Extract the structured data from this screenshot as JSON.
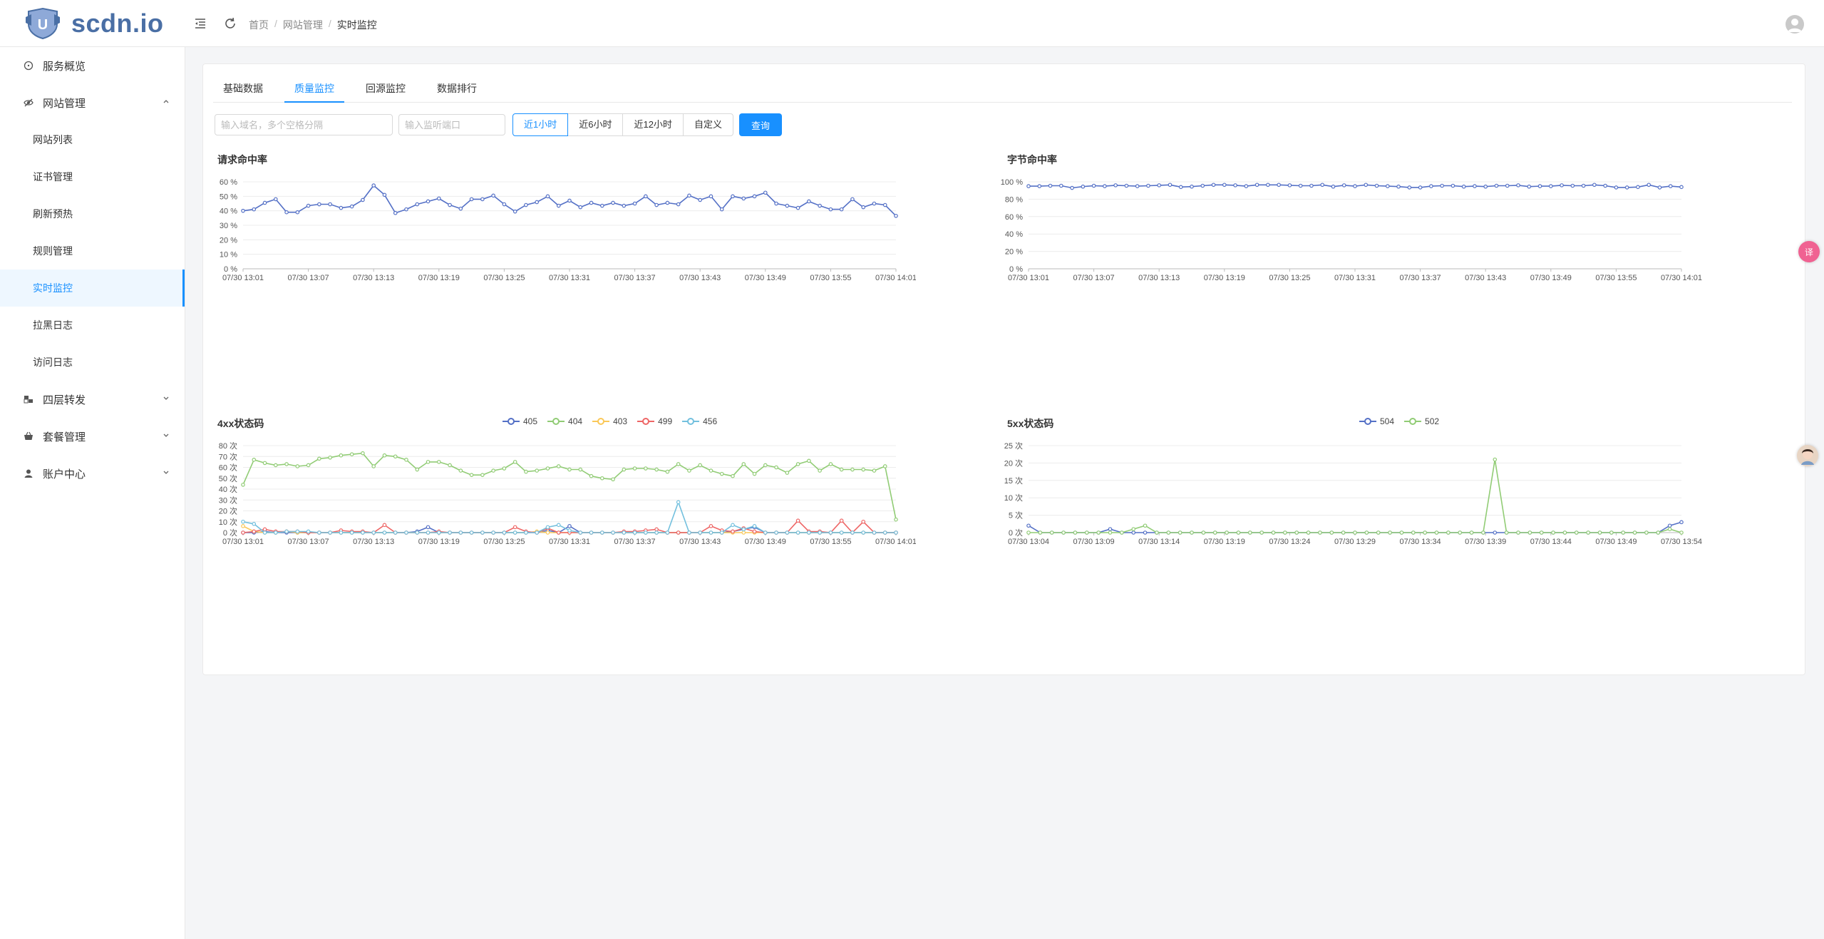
{
  "app": {
    "brand": "scdn.io"
  },
  "breadcrumb": [
    "首页",
    "网站管理",
    "实时监控"
  ],
  "sidebar": {
    "overview": "服务概览",
    "site_mgmt": "网站管理",
    "sub_items": [
      "网站列表",
      "证书管理",
      "刷新预热",
      "规则管理",
      "实时监控",
      "拉黑日志",
      "访问日志"
    ],
    "active_sub": 4,
    "l4": "四层转发",
    "plans": "套餐管理",
    "account": "账户中心"
  },
  "tabs": [
    "基础数据",
    "质量监控",
    "回源监控",
    "数据排行"
  ],
  "active_tab": 1,
  "filters": {
    "domain_placeholder": "输入域名，多个空格分隔",
    "port_placeholder": "输入监听端口",
    "ranges": [
      "近1小时",
      "近6小时",
      "近12小时",
      "自定义"
    ],
    "active_range": 0,
    "query_label": "查询"
  },
  "badge": "译",
  "chart_data": [
    {
      "id": "hit",
      "type": "line",
      "title": "请求命中率",
      "ylim": [
        0,
        60
      ],
      "yticks": [
        0,
        10,
        20,
        30,
        40,
        50,
        60
      ],
      "yunit": " %",
      "xticks": [
        "07/30 13:01",
        "07/30 13:07",
        "07/30 13:13",
        "07/30 13:19",
        "07/30 13:25",
        "07/30 13:31",
        "07/30 13:37",
        "07/30 13:43",
        "07/30 13:49",
        "07/30 13:55",
        "07/30 14:01"
      ],
      "series": [
        {
          "name": "请求命中率",
          "color": "#5470c6",
          "values": [
            40,
            41,
            45.5,
            48,
            39,
            39,
            43.5,
            44.5,
            44.5,
            42,
            43,
            47.5,
            57.5,
            51,
            38.5,
            41,
            44.5,
            46.5,
            48.5,
            44,
            41.5,
            48,
            48,
            50.5,
            44.5,
            39.5,
            44,
            46,
            50,
            43.5,
            47,
            42.5,
            45.5,
            43.5,
            45.5,
            43.5,
            45,
            50,
            44,
            45.5,
            44.5,
            50.5,
            47.5,
            50,
            41,
            50,
            48.5,
            50,
            52.5,
            45,
            43.5,
            42,
            46.5,
            43.5,
            41,
            41,
            48,
            42.5,
            45,
            44,
            36.5
          ]
        }
      ]
    },
    {
      "id": "byte",
      "type": "line",
      "title": "字节命中率",
      "ylim": [
        0,
        100
      ],
      "yticks": [
        0,
        20,
        40,
        60,
        80,
        100
      ],
      "yunit": " %",
      "xticks": [
        "07/30 13:01",
        "07/30 13:07",
        "07/30 13:13",
        "07/30 13:19",
        "07/30 13:25",
        "07/30 13:31",
        "07/30 13:37",
        "07/30 13:43",
        "07/30 13:49",
        "07/30 13:55",
        "07/30 14:01"
      ],
      "series": [
        {
          "name": "字节命中率",
          "color": "#5470c6",
          "values": [
            95,
            95,
            95.5,
            95.5,
            93,
            94.5,
            95.5,
            95,
            96,
            95.5,
            95,
            95.5,
            96,
            96.5,
            94,
            94.5,
            95.5,
            96.5,
            96.5,
            96,
            95,
            96.5,
            96.5,
            96.5,
            96,
            95.5,
            95.5,
            96.5,
            94.5,
            96,
            95,
            96.5,
            95.5,
            95,
            94.5,
            93.5,
            93.5,
            95,
            95.5,
            95.5,
            94.5,
            95,
            94.5,
            95.5,
            95.5,
            96,
            94.5,
            95,
            95,
            96,
            95.5,
            95.5,
            96.5,
            95.5,
            93.5,
            93.5,
            94,
            96.5,
            93.5,
            95,
            94
          ]
        }
      ]
    },
    {
      "id": "4xx",
      "type": "line",
      "title": "4xx状态码",
      "ylim": [
        0,
        80
      ],
      "yticks": [
        0,
        10,
        20,
        30,
        40,
        50,
        60,
        70,
        80
      ],
      "yunit": " 次",
      "xticks": [
        "07/30 13:01",
        "07/30 13:07",
        "07/30 13:13",
        "07/30 13:19",
        "07/30 13:25",
        "07/30 13:31",
        "07/30 13:37",
        "07/30 13:43",
        "07/30 13:49",
        "07/30 13:55",
        "07/30 14:01"
      ],
      "series": [
        {
          "name": "405",
          "color": "#5470c6",
          "values": [
            0,
            0,
            1,
            0,
            0,
            0,
            0,
            0,
            0,
            0,
            0,
            0,
            0,
            0,
            0,
            0,
            1,
            5,
            0,
            0,
            0,
            0,
            0,
            0,
            0,
            0,
            0,
            0,
            2,
            0,
            6,
            0,
            0,
            0,
            0,
            0,
            0,
            0,
            0,
            0,
            0,
            0,
            0,
            0,
            0,
            1,
            3,
            5,
            0,
            0,
            0,
            0,
            0,
            0,
            0,
            0,
            0,
            0,
            0,
            0,
            0
          ]
        },
        {
          "name": "404",
          "color": "#91cc75",
          "values": [
            44,
            67,
            64,
            62,
            63,
            61,
            62,
            68,
            69,
            71,
            72,
            73,
            61,
            71,
            70,
            67,
            58,
            65,
            65,
            62,
            57,
            53,
            53,
            57,
            59,
            65,
            56,
            57,
            59,
            61,
            58,
            58,
            52,
            50,
            49,
            58,
            59,
            59,
            58,
            56,
            63,
            57,
            62,
            57,
            54,
            52,
            63,
            54,
            62,
            60,
            55,
            63,
            66,
            57,
            63,
            58,
            58,
            58,
            57,
            61,
            12
          ]
        },
        {
          "name": "403",
          "color": "#fac858",
          "values": [
            6,
            1,
            0,
            0,
            1,
            0,
            0,
            0,
            0,
            0,
            0,
            0,
            0,
            0,
            0,
            0,
            0,
            0,
            0,
            0,
            0,
            0,
            0,
            0,
            0,
            0,
            0,
            1,
            0,
            0,
            0,
            0,
            0,
            0,
            0,
            0,
            0,
            0,
            0,
            0,
            0,
            0,
            0,
            0,
            0,
            0,
            0,
            0,
            0,
            0,
            0,
            0,
            0,
            0,
            0,
            0,
            0,
            0,
            0,
            0,
            0
          ]
        },
        {
          "name": "499",
          "color": "#ee6666",
          "values": [
            0,
            1,
            3,
            1,
            1,
            1,
            0,
            0,
            0,
            2,
            1,
            1,
            0,
            7,
            0,
            0,
            0,
            0,
            1,
            0,
            0,
            0,
            0,
            0,
            0,
            5,
            1,
            0,
            4,
            0,
            0,
            0,
            0,
            0,
            0,
            1,
            1,
            2,
            3,
            0,
            0,
            0,
            0,
            6,
            2,
            1,
            4,
            1,
            0,
            0,
            0,
            11,
            1,
            1,
            0,
            11,
            0,
            10,
            0,
            0,
            0
          ]
        },
        {
          "name": "456",
          "color": "#73c0de",
          "values": [
            10,
            8,
            0,
            0,
            1,
            1,
            1,
            0,
            0,
            0,
            0,
            0,
            0,
            0,
            0,
            0,
            0,
            0,
            0,
            0,
            0,
            0,
            0,
            0,
            0,
            0,
            0,
            0,
            5,
            7,
            2,
            0,
            0,
            0,
            0,
            0,
            0,
            0,
            0,
            0,
            28,
            0,
            0,
            0,
            0,
            7,
            3,
            6,
            0,
            0,
            0,
            0,
            0,
            0,
            0,
            0,
            0,
            0,
            0,
            0,
            0
          ]
        }
      ]
    },
    {
      "id": "5xx",
      "type": "line",
      "title": "5xx状态码",
      "ylim": [
        0,
        25
      ],
      "yticks": [
        0,
        5,
        10,
        15,
        20,
        25
      ],
      "yunit": " 次",
      "xticks": [
        "07/30 13:04",
        "07/30 13:09",
        "07/30 13:14",
        "07/30 13:19",
        "07/30 13:24",
        "07/30 13:29",
        "07/30 13:34",
        "07/30 13:39",
        "07/30 13:44",
        "07/30 13:49",
        "07/30 13:54"
      ],
      "series": [
        {
          "name": "504",
          "color": "#5470c6",
          "values": [
            2,
            0,
            0,
            0,
            0,
            0,
            0,
            1,
            0,
            0,
            0,
            0,
            0,
            0,
            0,
            0,
            0,
            0,
            0,
            0,
            0,
            0,
            0,
            0,
            0,
            0,
            0,
            0,
            0,
            0,
            0,
            0,
            0,
            0,
            0,
            0,
            0,
            0,
            0,
            0,
            0,
            0,
            0,
            0,
            0,
            0,
            0,
            0,
            0,
            0,
            0,
            0,
            0,
            0,
            0,
            2,
            3
          ]
        },
        {
          "name": "502",
          "color": "#91cc75",
          "values": [
            0,
            0,
            0,
            0,
            0,
            0,
            0,
            0,
            0,
            1,
            2,
            0,
            0,
            0,
            0,
            0,
            0,
            0,
            0,
            0,
            0,
            0,
            0,
            0,
            0,
            0,
            0,
            0,
            0,
            0,
            0,
            0,
            0,
            0,
            0,
            0,
            0,
            0,
            0,
            0,
            21,
            0,
            0,
            0,
            0,
            0,
            0,
            0,
            0,
            0,
            0,
            0,
            0,
            0,
            0,
            1,
            0
          ]
        }
      ]
    }
  ]
}
